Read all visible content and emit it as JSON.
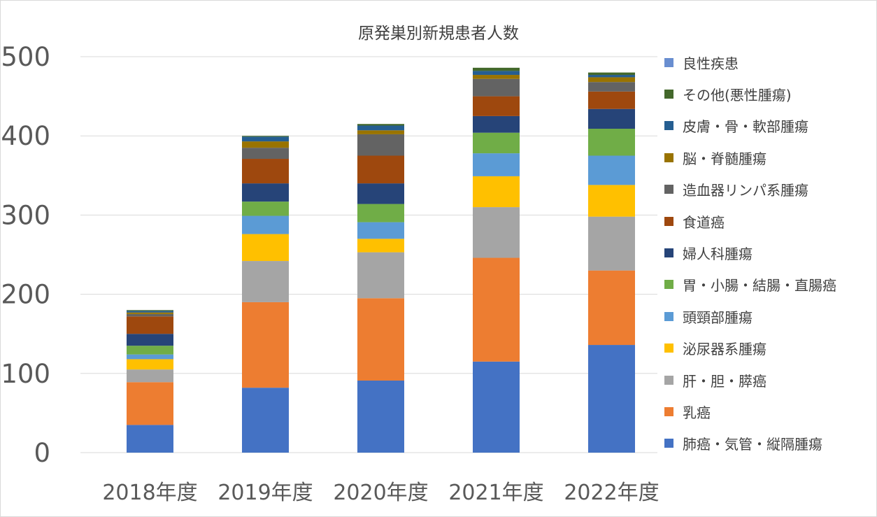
{
  "chart_data": {
    "type": "bar",
    "stacked": true,
    "title": "原発巣別新規患者人数",
    "xlabel": "",
    "ylabel": "",
    "categories": [
      "2018年度",
      "2019年度",
      "2020年度",
      "2021年度",
      "2022年度"
    ],
    "ylim": [
      0,
      500
    ],
    "yticks": [
      0,
      100,
      200,
      300,
      400,
      500
    ],
    "grid": true,
    "legend_position": "right",
    "series": [
      {
        "name": "肺癌・気管・縦隔腫瘍",
        "color": "#4472C4",
        "values": [
          35,
          82,
          91,
          115,
          136
        ]
      },
      {
        "name": "乳癌",
        "color": "#ED7D31",
        "values": [
          54,
          108,
          104,
          131,
          94
        ]
      },
      {
        "name": "肝・胆・膵癌",
        "color": "#A5A5A5",
        "values": [
          16,
          52,
          58,
          64,
          68
        ]
      },
      {
        "name": "泌尿器系腫瘍",
        "color": "#FFC000",
        "values": [
          13,
          34,
          17,
          39,
          40
        ]
      },
      {
        "name": "頭頸部腫瘍",
        "color": "#5B9BD5",
        "values": [
          6,
          23,
          21,
          29,
          37
        ]
      },
      {
        "name": "胃・小腸・結腸・直腸癌",
        "color": "#70AD47",
        "values": [
          11,
          18,
          23,
          26,
          34
        ]
      },
      {
        "name": "婦人科腫瘍",
        "color": "#264478",
        "values": [
          15,
          23,
          26,
          21,
          25
        ]
      },
      {
        "name": "食道癌",
        "color": "#9E480E",
        "values": [
          22,
          31,
          35,
          25,
          22
        ]
      },
      {
        "name": "造血器リンパ系腫瘍",
        "color": "#636363",
        "values": [
          3,
          14,
          27,
          22,
          12
        ]
      },
      {
        "name": "脳・脊髄腫瘍",
        "color": "#997300",
        "values": [
          2,
          8,
          5,
          5,
          6
        ]
      },
      {
        "name": "皮膚・骨・軟部腫瘍",
        "color": "#255E91",
        "values": [
          2,
          6,
          6,
          5,
          3
        ]
      },
      {
        "name": "その他(悪性腫瘍)",
        "color": "#43682B",
        "values": [
          1,
          1,
          2,
          4,
          3
        ]
      },
      {
        "name": "良性疾患",
        "color": "#698ED0",
        "values": [
          0,
          0,
          0,
          0,
          0
        ]
      }
    ]
  }
}
